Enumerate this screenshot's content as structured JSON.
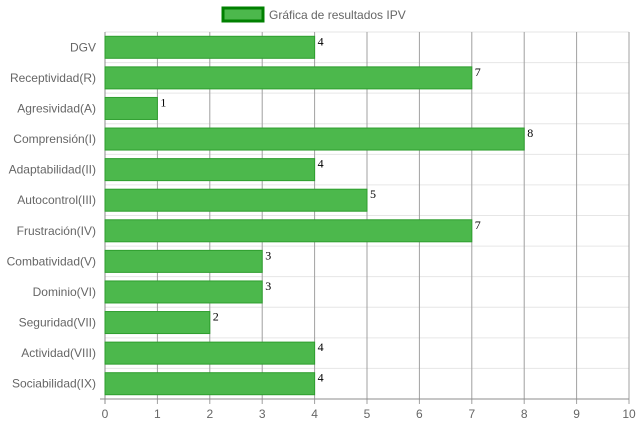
{
  "chart_data": {
    "type": "bar",
    "orientation": "horizontal",
    "legend": {
      "label": "Gráfica de resultados IPV",
      "position": "top"
    },
    "categories": [
      "DGV",
      "Receptividad(R)",
      "Agresividad(A)",
      "Comprensión(I)",
      "Adaptabilidad(II)",
      "Autocontrol(III)",
      "Frustración(IV)",
      "Combatividad(V)",
      "Dominio(VI)",
      "Seguridad(VII)",
      "Actividad(VIII)",
      "Sociabilidad(IX)"
    ],
    "series": [
      {
        "name": "Gráfica de resultados IPV",
        "values": [
          4,
          7,
          1,
          8,
          4,
          5,
          7,
          3,
          3,
          2,
          4,
          4
        ]
      }
    ],
    "xlim": [
      0,
      10
    ],
    "xticks": [
      0,
      1,
      2,
      3,
      4,
      5,
      6,
      7,
      8,
      9,
      10
    ],
    "grid": true,
    "colors": {
      "bar_fill": "#4cb84c",
      "bar_border": "#2e9e2e",
      "legend_border": "#008000",
      "grid": "#e6e6e6",
      "grid_major": "#a0a0a0"
    }
  }
}
